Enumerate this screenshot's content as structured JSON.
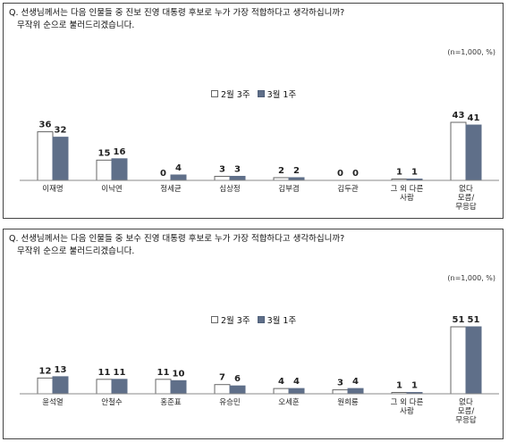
{
  "chart_data": [
    {
      "type": "bar",
      "title": "Q. 선생님께서는 다음 인물들 중 진보 진영 대통령 후보로 누가 가장 적합하다고 생각하십니까?",
      "subtitle": "무작위 순으로 불러드리겠습니다.",
      "note": "(n=1,000, %)",
      "categories": [
        [
          "이재명"
        ],
        [
          "이낙연"
        ],
        [
          "정세균"
        ],
        [
          "심상정"
        ],
        [
          "김부겸"
        ],
        [
          "김두관"
        ],
        [
          "그 외 다른",
          "사람"
        ],
        [
          "없다",
          "모름/",
          "무응답"
        ]
      ],
      "series": [
        {
          "name": "2월 3주",
          "values": [
            36,
            15,
            0,
            3,
            2,
            0,
            1,
            43
          ]
        },
        {
          "name": "3월 1주",
          "values": [
            32,
            16,
            4,
            3,
            2,
            0,
            1,
            41
          ]
        }
      ],
      "ylim": [
        0,
        43
      ],
      "legend": "top-center"
    },
    {
      "type": "bar",
      "title": "Q. 선생님께서는 다음 인물들 중 보수 진영 대통령 후보로 누가 가장 적합하다고 생각하십니까?",
      "subtitle": "무작위 순으로 불러드리겠습니다.",
      "note": "(n=1,000, %)",
      "categories": [
        [
          "윤석열"
        ],
        [
          "안철수"
        ],
        [
          "홍준표"
        ],
        [
          "유승민"
        ],
        [
          "오세훈"
        ],
        [
          "원희룡"
        ],
        [
          "그 외 다른",
          "사람"
        ],
        [
          "없다",
          "모름/",
          "무응답"
        ]
      ],
      "series": [
        {
          "name": "2월 3주",
          "values": [
            12,
            11,
            11,
            7,
            4,
            3,
            1,
            51
          ]
        },
        {
          "name": "3월 1주",
          "values": [
            13,
            11,
            10,
            6,
            4,
            4,
            1,
            51
          ]
        }
      ],
      "ylim": [
        0,
        51
      ],
      "legend": "top-center"
    }
  ],
  "colors": {
    "series_a_fill": "#ffffff",
    "series_a_stroke": "#666666",
    "series_b_fill": "#5f6f89",
    "axis": "#888888"
  }
}
